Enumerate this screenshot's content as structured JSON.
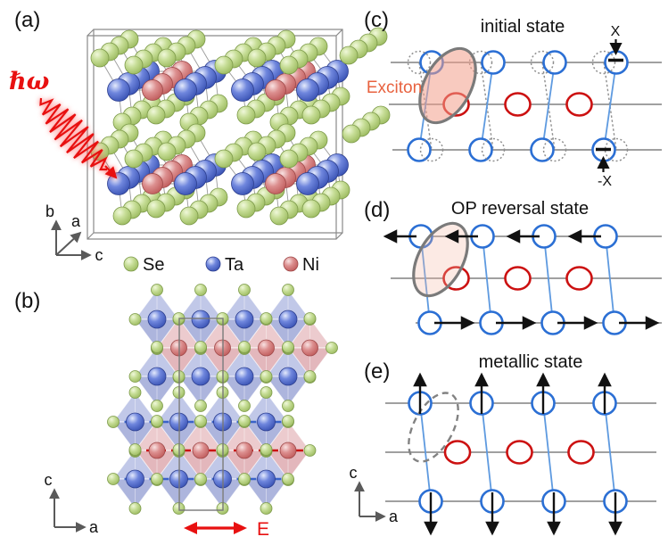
{
  "figure": {
    "panel_a": {
      "label": "(a)",
      "photon_label": "ℏω",
      "axis_b": "b",
      "axis_a": "a",
      "axis_c": "c"
    },
    "legend": {
      "se": "Se",
      "ta": "Ta",
      "ni": "Ni"
    },
    "panel_b": {
      "label": "(b)",
      "axis_c": "c",
      "axis_a": "a",
      "field_label": "E"
    },
    "panel_c": {
      "label": "(c)",
      "title": "initial state",
      "exciton_label": "Exciton",
      "disp_top": "X",
      "disp_bottom": "-X"
    },
    "panel_d": {
      "label": "(d)",
      "title": "OP reversal state"
    },
    "panel_e": {
      "label": "(e)",
      "title": "metallic state",
      "axis_c": "c",
      "axis_a": "a"
    }
  },
  "colors": {
    "se_atom": "#b9d489",
    "ta_atom": "#4a66cc",
    "ni_atom": "#c96a6a",
    "chain_ta_circle": "#2b6fd4",
    "chain_ni_circle": "#cc1111",
    "exciton_fill": "#f29e8a",
    "exciton_label": "#e8623f",
    "pump_red": "#e81010",
    "row_line_gray": "#a0a0a0"
  }
}
